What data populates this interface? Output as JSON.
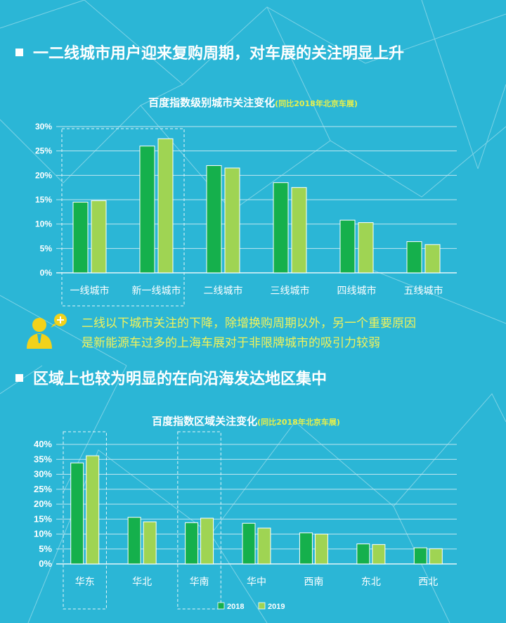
{
  "headings": {
    "h1": "一二线城市用户迎来复购周期，对车展的关注明显上升",
    "h2": "区域上也较为明显的在向沿海发达地区集中"
  },
  "note": {
    "line1": "二线以下城市关注的下降，除增换购周期以外，另一个重要原因",
    "line2": "是新能源车过多的上海车展对于非限牌城市的吸引力较弱"
  },
  "colors": {
    "bar_2018": "#15b04c",
    "bar_2019": "#9fd453",
    "background": "#2bb6d6",
    "accent_yellow": "#f2f25a"
  },
  "icons": [
    "person-speech-icon"
  ],
  "chart_data": [
    {
      "type": "bar",
      "title": "百度指数级别城市关注变化",
      "subtitle": "(同比2018年北京车展)",
      "categories": [
        "一线城市",
        "新一线城市",
        "二线城市",
        "三线城市",
        "四线城市",
        "五线城市"
      ],
      "series": [
        {
          "name": "2018",
          "values": [
            14.5,
            26,
            22,
            18.5,
            10.8,
            6.4
          ]
        },
        {
          "name": "2019",
          "values": [
            14.8,
            27.5,
            21.5,
            17.5,
            10.3,
            5.8
          ]
        }
      ],
      "ylim": [
        0,
        30
      ],
      "yticks": [
        "0%",
        "5%",
        "10%",
        "15%",
        "20%",
        "25%",
        "30%"
      ],
      "grid": true,
      "highlight_boxes": [
        [
          "一线城市",
          "新一线城市"
        ]
      ]
    },
    {
      "type": "bar",
      "title": "百度指数区域关注变化",
      "subtitle": "(同比2018年北京车展)",
      "categories": [
        "华东",
        "华北",
        "华南",
        "华中",
        "西南",
        "东北",
        "西北"
      ],
      "series": [
        {
          "name": "2018",
          "values": [
            33.8,
            15.6,
            13.8,
            13.6,
            10.4,
            6.7,
            5.4
          ]
        },
        {
          "name": "2019",
          "values": [
            36.2,
            14.1,
            15.3,
            12.0,
            10.0,
            6.5,
            5.1
          ]
        }
      ],
      "ylim": [
        0,
        40
      ],
      "yticks": [
        "0%",
        "5%",
        "10%",
        "15%",
        "20%",
        "25%",
        "30%",
        "35%",
        "40%"
      ],
      "grid": true,
      "legend": "bottom",
      "legend_labels": [
        "2018",
        "2019"
      ],
      "highlight_boxes": [
        [
          "华东"
        ],
        [
          "华南"
        ]
      ]
    }
  ]
}
